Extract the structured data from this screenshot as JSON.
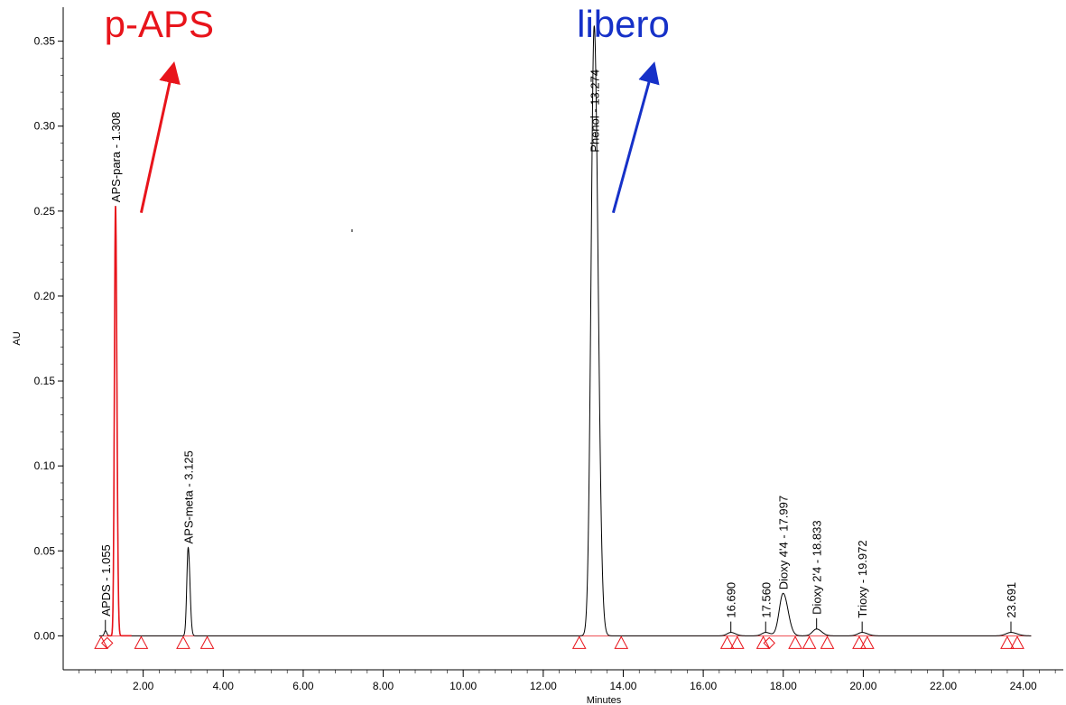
{
  "chart_data": {
    "type": "line",
    "title": "",
    "xlabel": "Minutes",
    "ylabel": "AU",
    "xlim": [
      0.0,
      25.0
    ],
    "ylim": [
      -0.02,
      0.37
    ],
    "x_ticks": [
      "2.00",
      "4.00",
      "6.00",
      "8.00",
      "10.00",
      "12.00",
      "14.00",
      "16.00",
      "18.00",
      "20.00",
      "22.00",
      "24.00"
    ],
    "x_tick_values": [
      2,
      4,
      6,
      8,
      10,
      12,
      14,
      16,
      18,
      20,
      22,
      24
    ],
    "y_ticks": [
      "0.00",
      "0.05",
      "0.10",
      "0.15",
      "0.20",
      "0.25",
      "0.30",
      "0.35"
    ],
    "y_tick_values": [
      0.0,
      0.05,
      0.1,
      0.15,
      0.2,
      0.25,
      0.3,
      0.35
    ],
    "grid": false,
    "peaks": [
      {
        "label": "APDS - 1.055",
        "rt": 1.055,
        "height": 0.003,
        "color": "#000000"
      },
      {
        "label": "APS-para - 1.308",
        "rt": 1.308,
        "height": 0.253,
        "color": "#e8141b"
      },
      {
        "label": "APS-meta - 3.125",
        "rt": 3.125,
        "height": 0.052,
        "color": "#000000"
      },
      {
        "label": "Phenol - 13.274",
        "rt": 13.274,
        "height": 0.359,
        "color": "#000000"
      },
      {
        "label": "16.690",
        "rt": 16.69,
        "height": 0.002,
        "color": "#000000"
      },
      {
        "label": "17.560",
        "rt": 17.56,
        "height": 0.002,
        "color": "#000000"
      },
      {
        "label": "Dioxy 4'4 - 17.997",
        "rt": 17.997,
        "height": 0.025,
        "color": "#000000"
      },
      {
        "label": "Dioxy 2'4 - 18.833",
        "rt": 18.833,
        "height": 0.004,
        "color": "#000000"
      },
      {
        "label": "Trioxy - 19.972",
        "rt": 19.972,
        "height": 0.002,
        "color": "#000000"
      },
      {
        "label": "23.691",
        "rt": 23.691,
        "height": 0.002,
        "color": "#000000"
      }
    ],
    "integration_markers": [
      {
        "rt": 0.95,
        "shape": "triangle"
      },
      {
        "rt": 1.1,
        "shape": "diamond"
      },
      {
        "rt": 1.95,
        "shape": "triangle"
      },
      {
        "rt": 3.0,
        "shape": "triangle"
      },
      {
        "rt": 3.6,
        "shape": "triangle"
      },
      {
        "rt": 12.9,
        "shape": "triangle"
      },
      {
        "rt": 13.95,
        "shape": "triangle"
      },
      {
        "rt": 16.6,
        "shape": "triangle"
      },
      {
        "rt": 16.85,
        "shape": "triangle"
      },
      {
        "rt": 17.5,
        "shape": "triangle"
      },
      {
        "rt": 17.65,
        "shape": "diamond"
      },
      {
        "rt": 18.3,
        "shape": "triangle"
      },
      {
        "rt": 18.65,
        "shape": "triangle"
      },
      {
        "rt": 19.1,
        "shape": "triangle"
      },
      {
        "rt": 19.9,
        "shape": "triangle"
      },
      {
        "rt": 20.1,
        "shape": "triangle"
      },
      {
        "rt": 23.6,
        "shape": "triangle"
      },
      {
        "rt": 23.85,
        "shape": "triangle"
      }
    ],
    "annotations": [
      {
        "text": "p-APS",
        "color": "#e8141b",
        "arrow_from": [
          1.95,
          0.249
        ],
        "arrow_to": [
          2.75,
          0.335
        ]
      },
      {
        "text": "libero",
        "color": "#1631c8",
        "arrow_from": [
          13.75,
          0.249
        ],
        "arrow_to": [
          14.75,
          0.335
        ]
      }
    ]
  }
}
